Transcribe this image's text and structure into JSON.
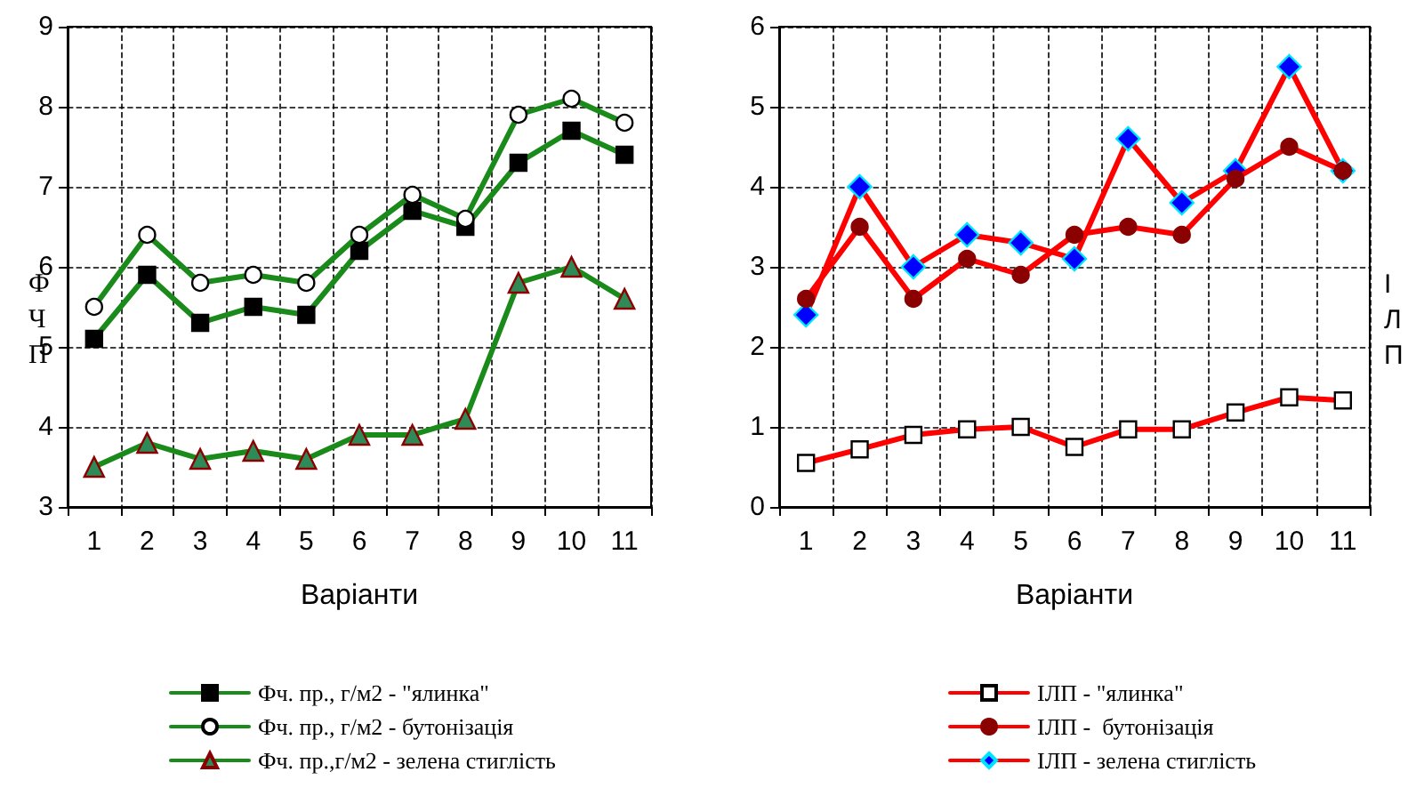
{
  "chart_data": [
    {
      "type": "line",
      "xlabel": "Варіанти",
      "ylabel": "ФЧП",
      "categories": [
        "1",
        "2",
        "3",
        "4",
        "5",
        "6",
        "7",
        "8",
        "9",
        "10",
        "11"
      ],
      "series": [
        {
          "name": "Фч. пр., г/м2 - \"ялинка\"",
          "color": "#1a8a1a",
          "marker": "square",
          "values": [
            5.1,
            5.9,
            5.3,
            5.5,
            5.4,
            6.2,
            6.7,
            6.5,
            7.3,
            7.7,
            7.4
          ]
        },
        {
          "name": "Фч. пр., г/м2 - бутонізація",
          "color": "#1a8a1a",
          "marker": "circle",
          "values": [
            5.5,
            6.4,
            5.8,
            5.9,
            5.8,
            6.4,
            6.9,
            6.6,
            7.9,
            8.1,
            7.8
          ]
        },
        {
          "name": "Фч. пр.,г/м2 - зелена стиглість",
          "color": "#1a8a1a",
          "marker": "triangle",
          "values": [
            3.5,
            3.8,
            3.6,
            3.7,
            3.6,
            3.9,
            3.9,
            4.1,
            5.8,
            6.0,
            5.6
          ]
        }
      ],
      "ylim": [
        3,
        9
      ],
      "yticks": [
        3,
        4,
        5,
        6,
        7,
        8,
        9
      ],
      "grid": true,
      "legend": "bottom",
      "line_style": "solid"
    },
    {
      "type": "line",
      "xlabel": "Варіанти",
      "ylabel": "ІЛП",
      "categories": [
        "1",
        "2",
        "3",
        "4",
        "5",
        "6",
        "7",
        "8",
        "9",
        "10",
        "11"
      ],
      "series": [
        {
          "name": "ІЛП - \"ялинка\"",
          "color": "#ff0000",
          "marker": "square",
          "values": [
            0.55,
            0.72,
            0.9,
            0.97,
            1.0,
            0.75,
            0.97,
            0.97,
            1.18,
            1.37,
            1.33
          ]
        },
        {
          "name": "ІЛП -  бутонізація",
          "color": "#ff0000",
          "marker": "circle",
          "values": [
            2.6,
            3.5,
            2.6,
            3.1,
            2.9,
            3.4,
            3.5,
            3.4,
            4.1,
            4.5,
            4.2
          ]
        },
        {
          "name": "ІЛП - зелена стиглість",
          "color": "#ff0000",
          "marker": "diamond",
          "values": [
            2.4,
            4.0,
            3.0,
            3.4,
            3.3,
            3.1,
            4.6,
            3.8,
            4.2,
            5.5,
            4.2
          ]
        }
      ],
      "ylim": [
        0,
        6
      ],
      "yticks": [
        0,
        1,
        2,
        3,
        4,
        5,
        6
      ],
      "grid": true,
      "legend": "bottom",
      "line_style": "solid"
    }
  ]
}
